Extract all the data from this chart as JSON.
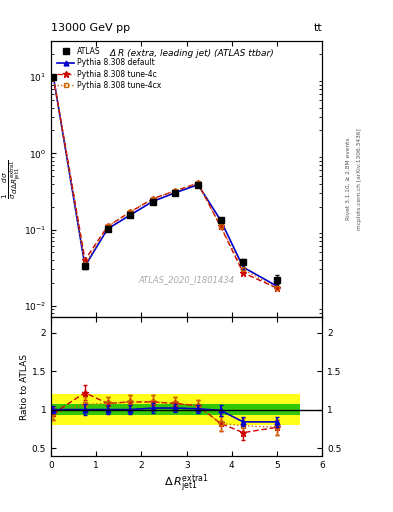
{
  "title_top": "13000 GeV pp",
  "title_top_right": "tt",
  "plot_title": "Δ R (extra, leading jet) (ATLAS ttbar)",
  "watermark": "ATLAS_2020_I1801434",
  "rivet_label": "Rivet 3.1.10, ≥ 2.8M events",
  "arxiv_label": "mcplots.cern.ch [arXiv:1306.3436]",
  "ylabel_ratio": "Ratio to ATLAS",
  "xlim": [
    0,
    6
  ],
  "ylim_main": [
    0.007,
    30
  ],
  "ylim_ratio": [
    0.4,
    2.2
  ],
  "yticks_ratio": [
    0.5,
    1.0,
    1.5,
    2.0
  ],
  "ytick_labels_ratio": [
    "0.5",
    "1",
    "1.5",
    "2"
  ],
  "x_data": [
    0.05,
    0.75,
    1.25,
    1.75,
    2.25,
    2.75,
    3.25,
    3.75,
    4.25,
    5.0
  ],
  "atlas_y": [
    10.2,
    0.033,
    0.102,
    0.155,
    0.23,
    0.3,
    0.385,
    0.135,
    0.038,
    0.022
  ],
  "atlas_yerr": [
    0.5,
    0.003,
    0.006,
    0.008,
    0.012,
    0.015,
    0.02,
    0.008,
    0.003,
    0.003
  ],
  "pythia_default_y": [
    10.2,
    0.033,
    0.102,
    0.155,
    0.234,
    0.305,
    0.388,
    0.133,
    0.032,
    0.018
  ],
  "pythia_4c_y": [
    10.2,
    0.04,
    0.11,
    0.17,
    0.253,
    0.324,
    0.405,
    0.11,
    0.027,
    0.017
  ],
  "pythia_4cx_y": [
    10.2,
    0.035,
    0.11,
    0.17,
    0.253,
    0.324,
    0.405,
    0.11,
    0.03,
    0.017
  ],
  "ratio_default": [
    1.0,
    1.0,
    1.0,
    1.0,
    1.02,
    1.02,
    1.01,
    0.99,
    0.84,
    0.84
  ],
  "ratio_4c": [
    0.95,
    1.22,
    1.08,
    1.1,
    1.1,
    1.08,
    1.05,
    0.82,
    0.7,
    0.77
  ],
  "ratio_4cx": [
    0.95,
    1.07,
    1.08,
    1.1,
    1.1,
    1.08,
    1.05,
    0.82,
    0.79,
    0.77
  ],
  "ratio_default_err": [
    0.05,
    0.07,
    0.06,
    0.06,
    0.06,
    0.05,
    0.05,
    0.07,
    0.06,
    0.07
  ],
  "ratio_4c_err": [
    0.08,
    0.1,
    0.08,
    0.09,
    0.09,
    0.08,
    0.07,
    0.1,
    0.1,
    0.1
  ],
  "ratio_4cx_err": [
    0.08,
    0.09,
    0.08,
    0.09,
    0.09,
    0.08,
    0.07,
    0.1,
    0.1,
    0.1
  ],
  "green_band": [
    0.93,
    1.07
  ],
  "yellow_band": [
    0.8,
    1.2
  ],
  "bin_edges": [
    0.0,
    0.5,
    1.0,
    1.5,
    2.0,
    2.5,
    3.0,
    3.5,
    4.0,
    4.5,
    5.5
  ],
  "color_atlas": "#000000",
  "color_default": "#0000cc",
  "color_4c": "#cc0000",
  "color_4cx": "#cc6600",
  "color_green": "#00bb00",
  "color_yellow": "#ffff00",
  "bg_color": "#ffffff"
}
